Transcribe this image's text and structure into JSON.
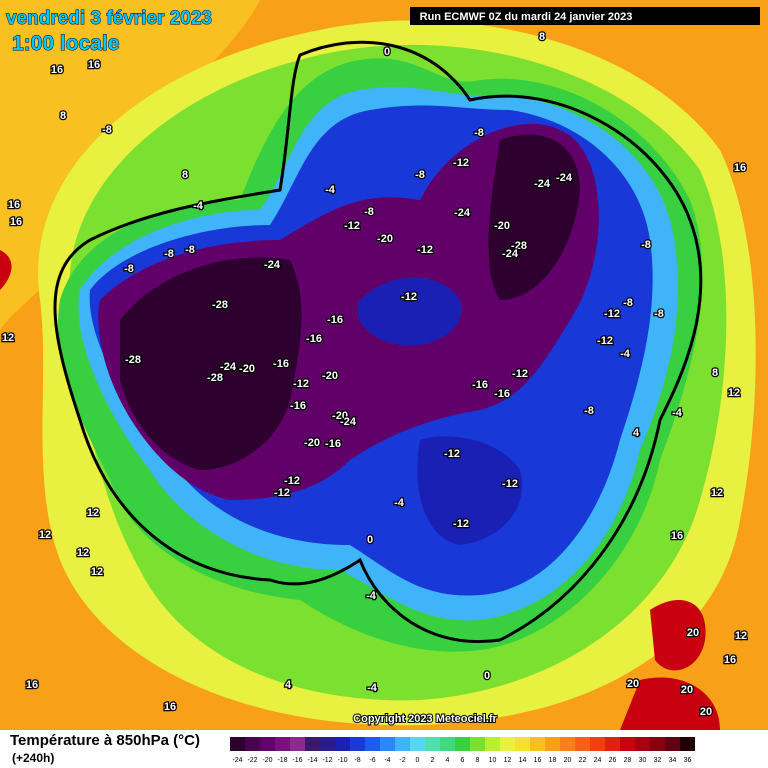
{
  "header": {
    "title": "vendredi 3 février 2023",
    "time": "1:00 locale",
    "run": "Run ECMWF 0Z du mardi 24 janvier 2023",
    "copyright": "Copyright 2023 Meteociel.fr"
  },
  "legend": {
    "title": "Température à 850hPa (°C)",
    "subtitle": "(+240h)",
    "items": [
      {
        "value": -24,
        "color": "#2d0030"
      },
      {
        "value": -22,
        "color": "#4a0050"
      },
      {
        "value": -20,
        "color": "#62006a"
      },
      {
        "value": -18,
        "color": "#7a107e"
      },
      {
        "value": -16,
        "color": "#8a2a8c"
      },
      {
        "value": -14,
        "color": "#3b1a6e"
      },
      {
        "value": -12,
        "color": "#2a1c8c"
      },
      {
        "value": -10,
        "color": "#1a20b4"
      },
      {
        "value": -8,
        "color": "#1838d8"
      },
      {
        "value": -6,
        "color": "#1a5cf0"
      },
      {
        "value": -4,
        "color": "#2a88f8"
      },
      {
        "value": -2,
        "color": "#40b4f8"
      },
      {
        "value": 0,
        "color": "#58d8f0"
      },
      {
        "value": 2,
        "color": "#50e0b0"
      },
      {
        "value": 4,
        "color": "#40d880"
      },
      {
        "value": 6,
        "color": "#38d040"
      },
      {
        "value": 8,
        "color": "#7ce030"
      },
      {
        "value": 10,
        "color": "#b8f030"
      },
      {
        "value": 12,
        "color": "#e8f040"
      },
      {
        "value": 14,
        "color": "#f8e030"
      },
      {
        "value": 16,
        "color": "#f8c020"
      },
      {
        "value": 18,
        "color": "#f8a018"
      },
      {
        "value": 20,
        "color": "#f88018"
      },
      {
        "value": 22,
        "color": "#f86018"
      },
      {
        "value": 24,
        "color": "#f04010"
      },
      {
        "value": 26,
        "color": "#e02010"
      },
      {
        "value": 28,
        "color": "#c80010"
      },
      {
        "value": 30,
        "color": "#a80010"
      },
      {
        "value": 32,
        "color": "#880010"
      },
      {
        "value": 34,
        "color": "#600010"
      },
      {
        "value": 36,
        "color": "#200000"
      }
    ]
  },
  "contour_labels": [
    -28,
    -28,
    -28,
    -24,
    -24,
    -20,
    -16,
    -16,
    -16,
    -12,
    -20,
    -16,
    -20,
    -24,
    -16,
    -20,
    -12,
    -12,
    -12,
    -12,
    -20,
    -12,
    -8,
    -4,
    -8,
    -12,
    -8,
    -24,
    -20,
    -28,
    -24,
    -24,
    -24,
    -16,
    -16,
    -12,
    -12,
    -12,
    -12,
    -8,
    -8,
    -12,
    -8,
    -12,
    -4,
    -8,
    -4,
    4,
    -4,
    -8,
    -8,
    -8,
    -8,
    -4,
    0,
    0,
    0,
    -4,
    -4,
    4,
    8,
    8,
    8,
    8,
    12,
    12,
    12,
    12,
    12,
    12,
    12,
    12,
    16,
    16,
    16,
    16,
    16,
    16,
    16,
    16,
    16,
    20,
    20,
    20,
    20
  ]
}
